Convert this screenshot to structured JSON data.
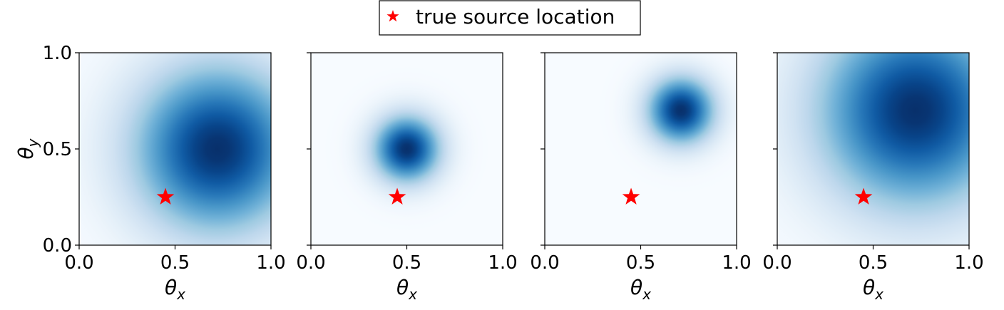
{
  "legend": {
    "label": "true source location",
    "color": "#ff0000"
  },
  "chart_data": [
    {
      "type": "heatmap",
      "colormap": "Blues",
      "xlabel": {
        "base": "θ",
        "subscript": "x"
      },
      "ylabel": {
        "base": "θ",
        "subscript": "y"
      },
      "xlim": [
        0,
        1
      ],
      "ylim": [
        0,
        1
      ],
      "xticks": [
        {
          "value": 0,
          "label": "0.0"
        },
        {
          "value": 0.5,
          "label": "0.5"
        },
        {
          "value": 1,
          "label": "1.0"
        }
      ],
      "yticks": [
        {
          "value": 0,
          "label": "0.0"
        },
        {
          "value": 0.5,
          "label": "0.5"
        },
        {
          "value": 1,
          "label": "1.0"
        }
      ],
      "peak": {
        "x": 0.72,
        "y": 0.5,
        "spread": 0.3
      },
      "source": {
        "x": 0.45,
        "y": 0.25
      }
    },
    {
      "type": "heatmap",
      "colormap": "Blues",
      "xlabel": {
        "base": "θ",
        "subscript": "x"
      },
      "xlim": [
        0,
        1
      ],
      "ylim": [
        0,
        1
      ],
      "xticks": [
        {
          "value": 0,
          "label": "0.0"
        },
        {
          "value": 0.5,
          "label": "0.5"
        },
        {
          "value": 1,
          "label": "1.0"
        }
      ],
      "yticks": [
        0,
        0.5,
        1
      ],
      "ytick_labels": false,
      "peak": {
        "x": 0.5,
        "y": 0.5,
        "spread": 0.12
      },
      "source": {
        "x": 0.45,
        "y": 0.25
      }
    },
    {
      "type": "heatmap",
      "colormap": "Blues",
      "xlabel": {
        "base": "θ",
        "subscript": "x"
      },
      "xlim": [
        0,
        1
      ],
      "ylim": [
        0,
        1
      ],
      "xticks": [
        {
          "value": 0,
          "label": "0.0"
        },
        {
          "value": 0.5,
          "label": "0.5"
        },
        {
          "value": 1,
          "label": "1.0"
        }
      ],
      "yticks": [
        0,
        0.5,
        1
      ],
      "ytick_labels": false,
      "peak": {
        "x": 0.71,
        "y": 0.7,
        "spread": 0.12
      },
      "source": {
        "x": 0.45,
        "y": 0.25
      }
    },
    {
      "type": "heatmap",
      "colormap": "Blues",
      "xlabel": {
        "base": "θ",
        "subscript": "x"
      },
      "xlim": [
        0,
        1
      ],
      "ylim": [
        0,
        1
      ],
      "xticks": [
        {
          "value": 0,
          "label": "0.0"
        },
        {
          "value": 0.5,
          "label": "0.5"
        },
        {
          "value": 1,
          "label": "1.0"
        }
      ],
      "yticks": [
        0,
        0.5,
        1
      ],
      "ytick_labels": false,
      "peak": {
        "x": 0.72,
        "y": 0.7,
        "spread": 0.35
      },
      "source": {
        "x": 0.45,
        "y": 0.25
      }
    }
  ]
}
